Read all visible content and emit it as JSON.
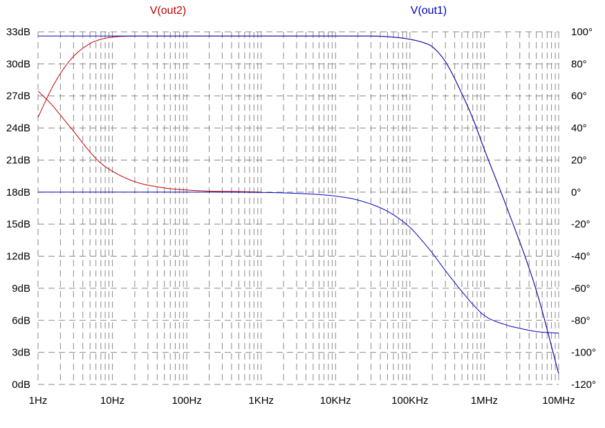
{
  "chart_data": {
    "type": "line",
    "x_scale": "log",
    "x_range_hz": [
      1,
      10000000
    ],
    "x_tick_values": [
      1,
      10,
      100,
      1000,
      10000,
      100000,
      1000000,
      10000000
    ],
    "x_tick_labels": [
      "1Hz",
      "10Hz",
      "100Hz",
      "1KHz",
      "10KHz",
      "100KHz",
      "1MHz",
      "10MHz"
    ],
    "y_left_range_db": [
      0,
      33
    ],
    "y_left_tick_values": [
      0,
      3,
      6,
      9,
      12,
      15,
      18,
      21,
      24,
      27,
      30,
      33
    ],
    "y_left_tick_labels": [
      "0dB",
      "3dB",
      "6dB",
      "9dB",
      "12dB",
      "15dB",
      "18dB",
      "21dB",
      "24dB",
      "27dB",
      "30dB",
      "33dB"
    ],
    "y_right_range_deg": [
      -120,
      100
    ],
    "y_right_tick_values": [
      100,
      80,
      60,
      40,
      20,
      0,
      -20,
      -40,
      -60,
      -80,
      -100,
      -120
    ],
    "y_right_tick_labels": [
      "100°",
      "80°",
      "60°",
      "40°",
      "20°",
      "0°",
      "-20°",
      "-40°",
      "-60°",
      "-80°",
      "-100°",
      "-120°"
    ],
    "grid": true,
    "colors": {
      "out1": "#0000c0",
      "out2": "#c00000",
      "grid": "#888888"
    },
    "series": [
      {
        "name": "V(out2)",
        "color": "#c00000",
        "magnitude": {
          "x": [
            1,
            1.5,
            2,
            3,
            5,
            7,
            10,
            20,
            50,
            100,
            1000,
            10000,
            30000,
            60000,
            100000,
            150000,
            200000,
            300000,
            500000,
            700000,
            1000000,
            2000000,
            5000000,
            10000000
          ],
          "db": [
            25.0,
            27.6,
            29.1,
            30.7,
            31.9,
            32.3,
            32.5,
            32.6,
            32.6,
            32.6,
            32.6,
            32.6,
            32.6,
            32.5,
            32.3,
            32.0,
            31.6,
            30.2,
            27.2,
            24.9,
            22.0,
            16.6,
            8.8,
            1.0
          ]
        },
        "phase": {
          "x": [
            1,
            1.5,
            2,
            3,
            5,
            7,
            10,
            20,
            50,
            100,
            200,
            500,
            1000
          ],
          "deg": [
            63,
            55,
            48,
            38,
            25,
            18,
            13,
            6.5,
            2.6,
            1.3,
            0.6,
            0.3,
            0
          ]
        }
      },
      {
        "name": "V(out1)",
        "color": "#0000c0",
        "magnitude": {
          "x": [
            1,
            10,
            100,
            1000,
            10000,
            30000,
            60000,
            100000,
            150000,
            200000,
            300000,
            500000,
            700000,
            1000000,
            2000000,
            5000000,
            10000000
          ],
          "db": [
            32.6,
            32.6,
            32.6,
            32.6,
            32.6,
            32.6,
            32.5,
            32.3,
            32.0,
            31.6,
            30.2,
            27.2,
            24.9,
            22.0,
            16.6,
            8.8,
            1.0
          ]
        },
        "phase": {
          "x": [
            1,
            10,
            100,
            1000,
            3000,
            10000,
            20000,
            50000,
            100000,
            150000,
            200000,
            300000,
            500000,
            700000,
            1000000,
            2000000,
            3000000,
            5000000,
            10000000
          ],
          "deg": [
            0,
            0,
            0,
            -0.2,
            -0.8,
            -2.5,
            -5,
            -12,
            -22,
            -31,
            -38,
            -49,
            -62,
            -70,
            -77,
            -83,
            -85,
            -87,
            -88
          ]
        }
      }
    ]
  }
}
